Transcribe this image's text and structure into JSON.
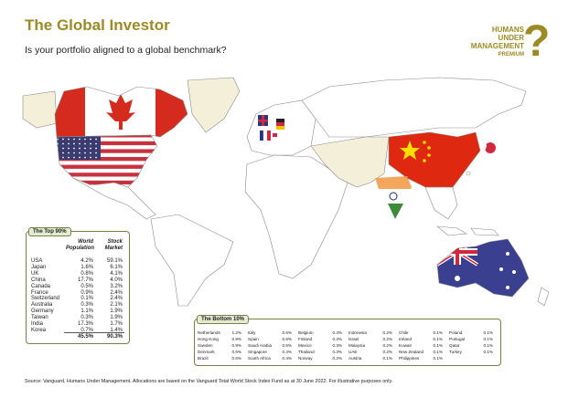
{
  "header": {
    "title": "The Global Investor",
    "subtitle": "Is your portfolio aligned to a global benchmark?"
  },
  "logo": {
    "lines": [
      "HUMANS",
      "UNDER",
      "MANAGEMENT"
    ],
    "tag": "PREMIUM",
    "mark": "?"
  },
  "top_table": {
    "title": "The Top 90%",
    "columns": [
      "World Population",
      "Stock Market"
    ],
    "rows": [
      [
        "USA",
        "4.2%",
        "59.1%"
      ],
      [
        "Japan",
        "1.6%",
        "6.1%"
      ],
      [
        "UK",
        "0.8%",
        "4.1%"
      ],
      [
        "China",
        "17.7%",
        "4.0%"
      ],
      [
        "Canada",
        "0.5%",
        "3.2%"
      ],
      [
        "France",
        "0.9%",
        "2.4%"
      ],
      [
        "Switzerland",
        "0.1%",
        "2.4%"
      ],
      [
        "Australia",
        "0.3%",
        "2.1%"
      ],
      [
        "Germany",
        "1.1%",
        "1.9%"
      ],
      [
        "Taiwan",
        "0.3%",
        "1.9%"
      ],
      [
        "India",
        "17.3%",
        "1.7%"
      ],
      [
        "Korea",
        "0.7%",
        "1.4%"
      ]
    ],
    "total": [
      "45.5%",
      "90.3%"
    ]
  },
  "bottom_table": {
    "title": "The Bottom 10%",
    "rows": [
      [
        "Netherlands",
        "1.2%"
      ],
      [
        "Hong Kong",
        "0.9%"
      ],
      [
        "Sweden",
        "0.9%"
      ],
      [
        "Denmark",
        "0.6%"
      ],
      [
        "Brazil",
        "0.6%"
      ],
      [
        "Italy",
        "0.6%"
      ],
      [
        "Spain",
        "0.6%"
      ],
      [
        "Saudi Arabia",
        "0.5%"
      ],
      [
        "Singapore",
        "0.4%"
      ],
      [
        "South Africa",
        "0.4%"
      ],
      [
        "Belgium",
        "0.3%"
      ],
      [
        "Finland",
        "0.3%"
      ],
      [
        "Mexico",
        "0.3%"
      ],
      [
        "Thailand",
        "0.3%"
      ],
      [
        "Norway",
        "0.2%"
      ],
      [
        "Indonesia",
        "0.2%"
      ],
      [
        "Israel",
        "0.2%"
      ],
      [
        "Malaysia",
        "0.2%"
      ],
      [
        "UAE",
        "0.2%"
      ],
      [
        "Austria",
        "0.1%"
      ],
      [
        "Chile",
        "0.1%"
      ],
      [
        "Ireland",
        "0.1%"
      ],
      [
        "Kuwait",
        "0.1%"
      ],
      [
        "New Zealand",
        "0.1%"
      ],
      [
        "Philippines",
        "0.1%"
      ],
      [
        "Poland",
        "0.1%"
      ],
      [
        "Portugal",
        "0.1%"
      ],
      [
        "Qatar",
        "0.1%"
      ],
      [
        "Turkey",
        "0.1%"
      ]
    ]
  },
  "footer": "Source: Vanguard, Humans Under Management. Allocations are based on the Vanguard Total World Stock Index Fund as at 30 June 2022. For illustrative purposes only."
}
